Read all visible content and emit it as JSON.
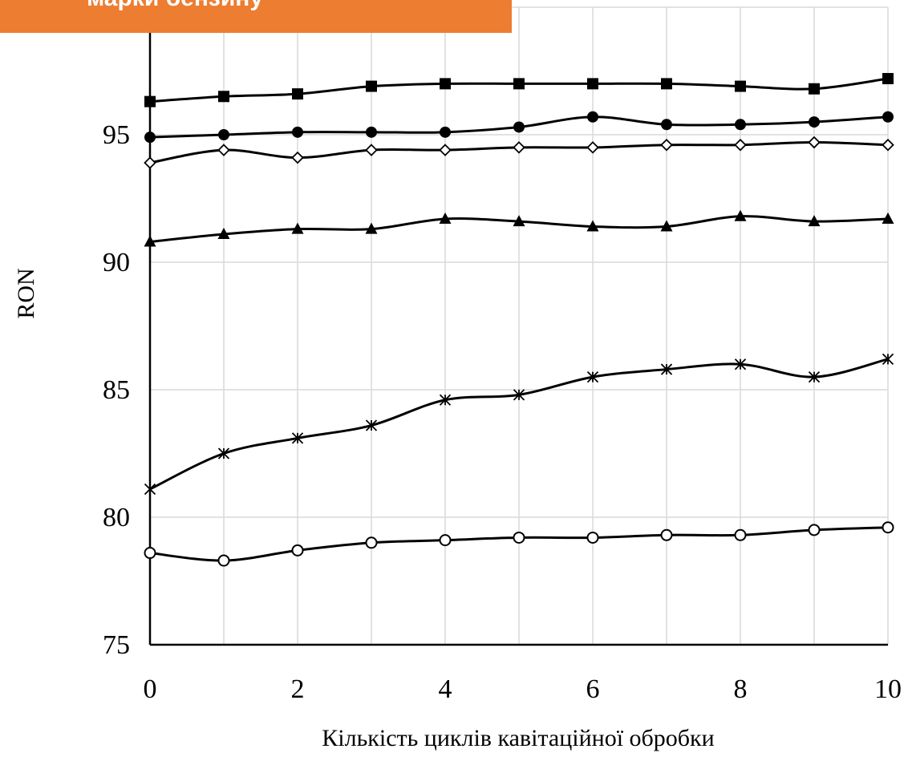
{
  "banner": {
    "text": "марки бензину",
    "color": "#ed7d31"
  },
  "chart_data": {
    "type": "line",
    "title": "",
    "xlabel": "Кількість циклів кавітаційної обробки",
    "ylabel": "RON",
    "xlim": [
      0,
      10
    ],
    "ylim": [
      75,
      100
    ],
    "x_ticks": [
      0,
      2,
      4,
      6,
      8,
      10
    ],
    "y_ticks": [
      75,
      80,
      85,
      90,
      95
    ],
    "grid": true,
    "legend": "none",
    "x": [
      0,
      1,
      2,
      3,
      4,
      5,
      6,
      7,
      8,
      9,
      10
    ],
    "series": [
      {
        "marker": "square",
        "values": [
          96.3,
          96.5,
          96.6,
          96.9,
          97.0,
          97.0,
          97.0,
          97.0,
          96.9,
          96.8,
          97.2
        ]
      },
      {
        "marker": "circle-filled",
        "values": [
          94.9,
          95.0,
          95.1,
          95.1,
          95.1,
          95.3,
          95.7,
          95.4,
          95.4,
          95.5,
          95.7
        ]
      },
      {
        "marker": "diamond-open",
        "values": [
          93.9,
          94.4,
          94.1,
          94.4,
          94.4,
          94.5,
          94.5,
          94.6,
          94.6,
          94.7,
          94.6
        ]
      },
      {
        "marker": "triangle",
        "values": [
          90.8,
          91.1,
          91.3,
          91.3,
          91.7,
          91.6,
          91.4,
          91.4,
          91.8,
          91.6,
          91.7
        ]
      },
      {
        "marker": "asterisk",
        "values": [
          81.1,
          82.5,
          83.1,
          83.6,
          84.6,
          84.8,
          85.5,
          85.8,
          86.0,
          85.5,
          86.2
        ]
      },
      {
        "marker": "circle-open",
        "values": [
          78.6,
          78.3,
          78.7,
          79.0,
          79.1,
          79.2,
          79.2,
          79.3,
          79.3,
          79.5,
          79.6
        ]
      }
    ]
  }
}
